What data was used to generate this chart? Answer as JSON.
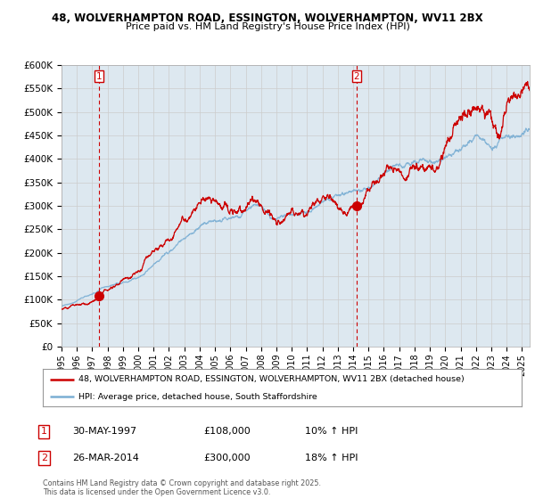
{
  "title_line1": "48, WOLVERHAMPTON ROAD, ESSINGTON, WOLVERHAMPTON, WV11 2BX",
  "title_line2": "Price paid vs. HM Land Registry's House Price Index (HPI)",
  "ylim": [
    0,
    600000
  ],
  "yticks": [
    0,
    50000,
    100000,
    150000,
    200000,
    250000,
    300000,
    350000,
    400000,
    450000,
    500000,
    550000,
    600000
  ],
  "ytick_labels": [
    "£0",
    "£50K",
    "£100K",
    "£150K",
    "£200K",
    "£250K",
    "£300K",
    "£350K",
    "£400K",
    "£450K",
    "£500K",
    "£550K",
    "£600K"
  ],
  "red_color": "#cc0000",
  "blue_color": "#7bafd4",
  "vline_color": "#cc0000",
  "grid_color": "#cccccc",
  "plot_bg_color": "#dde8f0",
  "bg_color": "#ffffff",
  "legend_label_red": "48, WOLVERHAMPTON ROAD, ESSINGTON, WOLVERHAMPTON, WV11 2BX (detached house)",
  "legend_label_blue": "HPI: Average price, detached house, South Staffordshire",
  "annotation1_num": "1",
  "annotation1_date": "30-MAY-1997",
  "annotation1_price": "£108,000",
  "annotation1_hpi": "10% ↑ HPI",
  "annotation2_num": "2",
  "annotation2_date": "26-MAR-2014",
  "annotation2_price": "£300,000",
  "annotation2_hpi": "18% ↑ HPI",
  "footnote": "Contains HM Land Registry data © Crown copyright and database right 2025.\nThis data is licensed under the Open Government Licence v3.0.",
  "sale1_x": 1997.42,
  "sale1_y": 108000,
  "sale2_x": 2014.23,
  "sale2_y": 300000,
  "xmin": 1995,
  "xmax": 2025.5
}
